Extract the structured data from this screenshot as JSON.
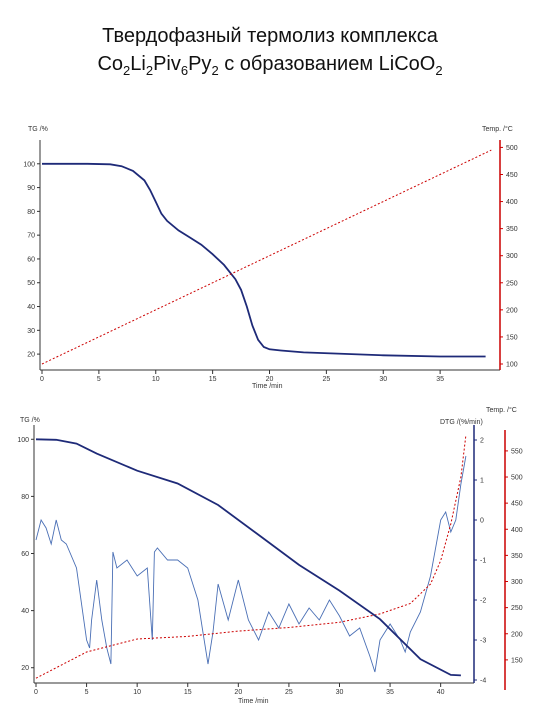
{
  "slide": {
    "title_line1": "Твердофазный термолиз комплекса",
    "title_line2_parts": [
      "Co",
      "2",
      "Li",
      "2",
      "Piv",
      "6",
      "Py",
      "2",
      " с образованием LiCoO",
      "2"
    ]
  },
  "chart_data": [
    {
      "type": "line",
      "ylabel_left": "TG /%",
      "ylabel_right": "Temp. /°C",
      "xlabel": "Time /min",
      "xlim": [
        0,
        40
      ],
      "ylim_left": [
        15,
        110
      ],
      "ylim_right": [
        100,
        510
      ],
      "x_ticks": [
        0,
        5,
        10,
        15,
        20,
        25,
        30,
        35
      ],
      "y_ticks_left": [
        100,
        90,
        80,
        70,
        60,
        50,
        40,
        30,
        20
      ],
      "y_ticks_right": [
        500,
        450,
        400,
        350,
        300,
        250,
        200,
        150,
        100
      ],
      "series": [
        {
          "axis": "left",
          "color": "#1e2a78",
          "x": [
            0,
            4,
            6,
            7,
            8,
            9,
            9.5,
            10,
            10.5,
            11,
            12,
            13,
            14,
            15,
            16,
            17,
            17.5,
            18,
            18.5,
            19,
            19.5,
            20,
            21,
            23,
            26,
            30,
            35,
            39
          ],
          "y": [
            100,
            100,
            99.8,
            99,
            97,
            93,
            89,
            84,
            79,
            76,
            72,
            69,
            66,
            62,
            57.5,
            51.5,
            47,
            40,
            32,
            26,
            23,
            22,
            21.5,
            20.7,
            20.2,
            19.5,
            19,
            19
          ]
        },
        {
          "axis": "right",
          "color": "#cc0000",
          "dashed": true,
          "x": [
            0,
            39.5
          ],
          "y": [
            100,
            495
          ]
        }
      ]
    },
    {
      "type": "line",
      "ylabel_left": "TG /%",
      "ylabel_right_inner": "DTG /(%/min)",
      "ylabel_right_outer": "Temp. /°C",
      "xlabel": "Time /min",
      "xlim": [
        0,
        43
      ],
      "ylim_left": [
        15,
        105
      ],
      "ylim_right_inner": [
        -4,
        2
      ],
      "ylim_right_outer": [
        100,
        590
      ],
      "x_ticks": [
        0,
        5,
        10,
        15,
        20,
        25,
        30,
        35,
        40
      ],
      "y_ticks_left": [
        100,
        80,
        60,
        40,
        20
      ],
      "y_ticks_right_inner": [
        2,
        1,
        0,
        -1,
        -2,
        -3,
        -4
      ],
      "y_ticks_right_outer": [
        550,
        500,
        450,
        400,
        350,
        300,
        250,
        200,
        150
      ],
      "series": [
        {
          "axis": "left",
          "color": "#1e2a78",
          "x": [
            0,
            2,
            4,
            6,
            10,
            14,
            18,
            22,
            26,
            30,
            34,
            38,
            41,
            42
          ],
          "y": [
            100,
            99.8,
            98.5,
            95,
            89,
            84.5,
            77,
            66.5,
            56,
            47,
            37,
            23,
            17.5,
            17.3
          ]
        },
        {
          "axis": "right_inner",
          "color": "#4a6fb5",
          "x": [
            0,
            0.5,
            1,
            1.5,
            2,
            2.5,
            3,
            4,
            5,
            5.3,
            5.5,
            6,
            6.5,
            7,
            7.4,
            7.6,
            8,
            9,
            10,
            11,
            11.5,
            11.7,
            12,
            13,
            14,
            15,
            16,
            16.5,
            17,
            17.5,
            18,
            19,
            20,
            21,
            22,
            23,
            24,
            25,
            26,
            27,
            28,
            29,
            30,
            31,
            32,
            33,
            33.5,
            34,
            35,
            36,
            36.5,
            37,
            38,
            39,
            40,
            40.5,
            41,
            41.5,
            42,
            42.5
          ],
          "y": [
            -0.5,
            0,
            -0.2,
            -0.6,
            0,
            -0.5,
            -0.6,
            -1.2,
            -3.0,
            -3.2,
            -2.5,
            -1.5,
            -2.5,
            -3.2,
            -3.6,
            -0.8,
            -1.2,
            -1.0,
            -1.4,
            -1.2,
            -3.0,
            -0.8,
            -0.7,
            -1.0,
            -1.0,
            -1.2,
            -2.0,
            -2.8,
            -3.6,
            -2.8,
            -1.6,
            -2.5,
            -1.5,
            -2.5,
            -3.0,
            -2.3,
            -2.7,
            -2.1,
            -2.6,
            -2.2,
            -2.5,
            -2.0,
            -2.4,
            -2.9,
            -2.7,
            -3.4,
            -3.8,
            -3.0,
            -2.6,
            -3.0,
            -3.3,
            -2.8,
            -2.3,
            -1.4,
            0.0,
            0.2,
            -0.3,
            0.0,
            0.9,
            1.6
          ]
        },
        {
          "axis": "right_outer",
          "color": "#cc0000",
          "dashed": true,
          "x": [
            0,
            5,
            10,
            15,
            20,
            25,
            30,
            34,
            37,
            39,
            40,
            41,
            42,
            42.5
          ],
          "y": [
            115,
            165,
            190,
            195,
            205,
            212,
            222,
            238,
            258,
            295,
            340,
            410,
            500,
            580
          ]
        }
      ]
    }
  ]
}
